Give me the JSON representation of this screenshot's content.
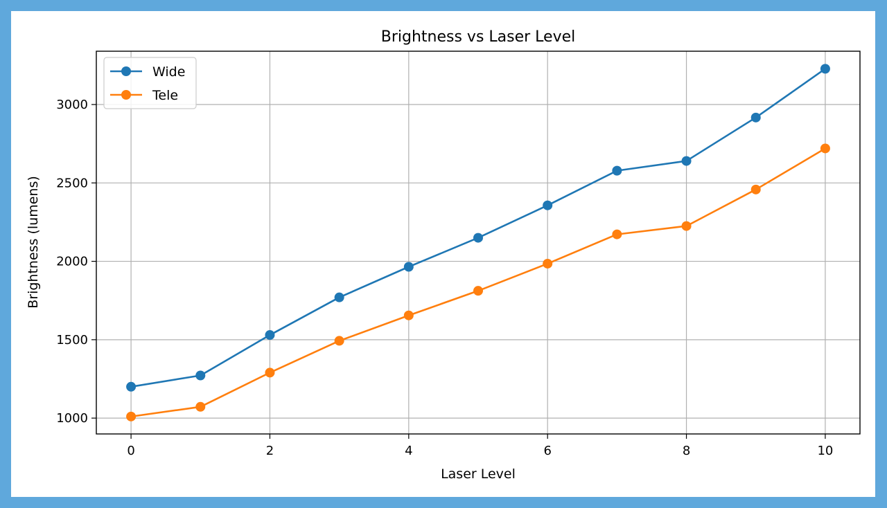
{
  "page": {
    "border_color": "#5fa8dc",
    "background": "#ffffff"
  },
  "chart_data": {
    "type": "line",
    "title": "Brightness vs Laser Level",
    "xlabel": "Laser Level",
    "ylabel": "Brightness (lumens)",
    "x": [
      0,
      1,
      2,
      3,
      4,
      5,
      6,
      7,
      8,
      9,
      10
    ],
    "xlim": [
      -0.5,
      10.5
    ],
    "ylim": [
      899,
      3340
    ],
    "xticks": [
      0,
      2,
      4,
      6,
      8,
      10
    ],
    "yticks": [
      1000,
      1500,
      2000,
      2500,
      3000
    ],
    "grid": true,
    "legend_position": "upper left",
    "series": [
      {
        "name": "Wide",
        "color": "#1f77b4",
        "marker": "circle",
        "values": [
          1200,
          1272,
          1530,
          1770,
          1965,
          2150,
          2357,
          2578,
          2640,
          2917,
          3228
        ]
      },
      {
        "name": "Tele",
        "color": "#ff7f0e",
        "marker": "circle",
        "values": [
          1010,
          1072,
          1290,
          1493,
          1655,
          1812,
          1985,
          2172,
          2225,
          2458,
          2720
        ]
      }
    ]
  }
}
